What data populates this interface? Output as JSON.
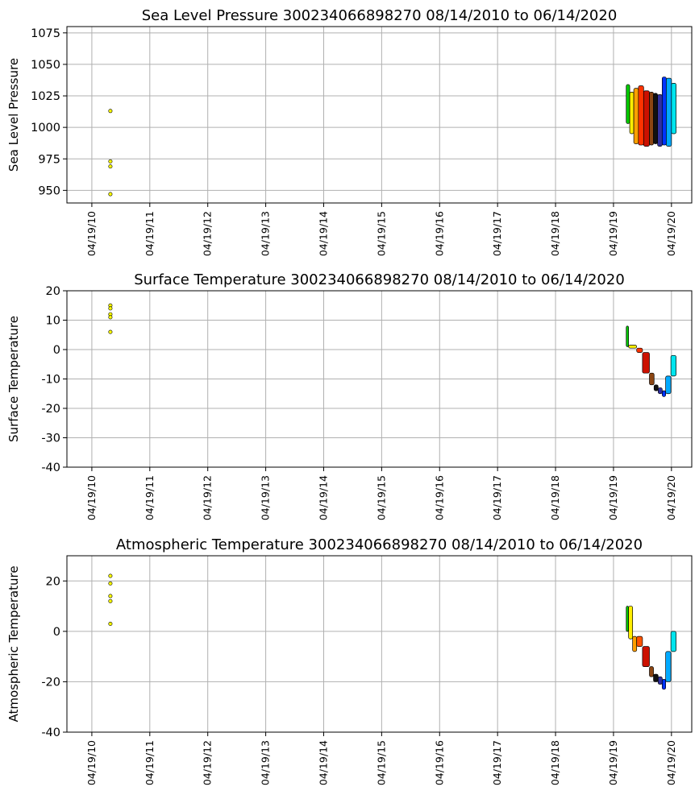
{
  "chart_data": [
    {
      "type": "scatter",
      "title": "Sea Level Pressure 300234066898270  08/14/2010 to 06/14/2020",
      "xlabel": "",
      "ylabel": "Sea Level Pressure",
      "ylim": [
        940,
        1080
      ],
      "yticks": [
        950,
        975,
        1000,
        1025,
        1050,
        1075
      ],
      "xlim": [
        2009.87,
        2020.65
      ],
      "xticks": [
        2010.3,
        2011.3,
        2012.3,
        2013.3,
        2014.3,
        2015.3,
        2016.3,
        2017.3,
        2018.3,
        2019.3,
        2020.3
      ],
      "xticklabels": [
        "04/19/10",
        "04/19/11",
        "04/19/12",
        "04/19/13",
        "04/19/14",
        "04/19/15",
        "04/19/16",
        "04/19/17",
        "04/19/18",
        "04/19/19",
        "04/19/20"
      ],
      "grid": true,
      "early_points": {
        "x": 2010.62,
        "color": "#ffff00",
        "values": [
          1013,
          973,
          969,
          947
        ]
      },
      "track_segments": [
        {
          "x0": 2019.52,
          "x1": 2019.58,
          "color": "#00cc00",
          "low": 1003,
          "high": 1034
        },
        {
          "x0": 2019.58,
          "x1": 2019.65,
          "color": "#ffee00",
          "low": 995,
          "high": 1028
        },
        {
          "x0": 2019.65,
          "x1": 2019.73,
          "color": "#ffa000",
          "low": 987,
          "high": 1031
        },
        {
          "x0": 2019.73,
          "x1": 2019.82,
          "color": "#ff3300",
          "low": 986,
          "high": 1033
        },
        {
          "x0": 2019.82,
          "x1": 2019.92,
          "color": "#cc1100",
          "low": 985,
          "high": 1029
        },
        {
          "x0": 2019.92,
          "x1": 2019.99,
          "color": "#8b4513",
          "low": 986,
          "high": 1028
        },
        {
          "x0": 2019.99,
          "x1": 2020.06,
          "color": "#111111",
          "low": 987,
          "high": 1027
        },
        {
          "x0": 2020.06,
          "x1": 2020.14,
          "color": "#3030a0",
          "low": 985,
          "high": 1026
        },
        {
          "x0": 2020.14,
          "x1": 2020.21,
          "color": "#0033ff",
          "low": 986,
          "high": 1040
        },
        {
          "x0": 2020.21,
          "x1": 2020.3,
          "color": "#00aaff",
          "low": 985,
          "high": 1039
        },
        {
          "x0": 2020.3,
          "x1": 2020.38,
          "color": "#00e5ee",
          "low": 995,
          "high": 1035
        }
      ]
    },
    {
      "type": "scatter",
      "title": "Surface Temperature 300234066898270  08/14/2010 to 06/14/2020",
      "xlabel": "",
      "ylabel": "Surface Temperature",
      "ylim": [
        -40,
        20
      ],
      "yticks": [
        -40,
        -30,
        -20,
        -10,
        0,
        10,
        20
      ],
      "xlim": [
        2009.87,
        2020.65
      ],
      "xticks": [
        2010.3,
        2011.3,
        2012.3,
        2013.3,
        2014.3,
        2015.3,
        2016.3,
        2017.3,
        2018.3,
        2019.3,
        2020.3
      ],
      "xticklabels": [
        "04/19/10",
        "04/19/11",
        "04/19/12",
        "04/19/13",
        "04/19/14",
        "04/19/15",
        "04/19/16",
        "04/19/17",
        "04/19/18",
        "04/19/19",
        "04/19/20"
      ],
      "grid": true,
      "early_points": {
        "x": 2010.62,
        "color": "#ffff00",
        "values": [
          15,
          14,
          12,
          11,
          6
        ]
      },
      "track_segments": [
        {
          "x0": 2019.52,
          "x1": 2019.56,
          "color": "#00cc00",
          "low": 1,
          "high": 8
        },
        {
          "x0": 2019.56,
          "x1": 2019.7,
          "color": "#ffee00",
          "low": 0.5,
          "high": 1.5
        },
        {
          "x0": 2019.7,
          "x1": 2019.8,
          "color": "#ff3300",
          "low": -1,
          "high": 0.5
        },
        {
          "x0": 2019.8,
          "x1": 2019.92,
          "color": "#cc1100",
          "low": -8,
          "high": -1
        },
        {
          "x0": 2019.92,
          "x1": 2020.0,
          "color": "#8b4513",
          "low": -12,
          "high": -8
        },
        {
          "x0": 2020.0,
          "x1": 2020.07,
          "color": "#111111",
          "low": -14,
          "high": -12
        },
        {
          "x0": 2020.07,
          "x1": 2020.14,
          "color": "#3030a0",
          "low": -15,
          "high": -13
        },
        {
          "x0": 2020.14,
          "x1": 2020.2,
          "color": "#0033ff",
          "low": -16,
          "high": -14
        },
        {
          "x0": 2020.2,
          "x1": 2020.29,
          "color": "#00aaff",
          "low": -15,
          "high": -9
        },
        {
          "x0": 2020.29,
          "x1": 2020.38,
          "color": "#00e5ee",
          "low": -9,
          "high": -2
        }
      ]
    },
    {
      "type": "scatter",
      "title": "Atmospheric Temperature 300234066898270  08/14/2010 to 06/14/2020",
      "xlabel": "",
      "ylabel": "Atmospheric Temperature",
      "ylim": [
        -40,
        30
      ],
      "yticks": [
        -40,
        -20,
        0,
        20
      ],
      "xlim": [
        2009.87,
        2020.65
      ],
      "xticks": [
        2010.3,
        2011.3,
        2012.3,
        2013.3,
        2014.3,
        2015.3,
        2016.3,
        2017.3,
        2018.3,
        2019.3,
        2020.3
      ],
      "xticklabels": [
        "04/19/10",
        "04/19/11",
        "04/19/12",
        "04/19/13",
        "04/19/14",
        "04/19/15",
        "04/19/16",
        "04/19/17",
        "04/19/18",
        "04/19/19",
        "04/19/20"
      ],
      "grid": true,
      "early_points": {
        "x": 2010.62,
        "color": "#ffff00",
        "values": [
          22,
          19,
          14,
          12,
          3
        ]
      },
      "track_segments": [
        {
          "x0": 2019.52,
          "x1": 2019.56,
          "color": "#00cc00",
          "low": 0,
          "high": 10
        },
        {
          "x0": 2019.56,
          "x1": 2019.63,
          "color": "#ffee00",
          "low": -3,
          "high": 10
        },
        {
          "x0": 2019.63,
          "x1": 2019.7,
          "color": "#ffa000",
          "low": -8,
          "high": -2
        },
        {
          "x0": 2019.7,
          "x1": 2019.8,
          "color": "#ff5500",
          "low": -6,
          "high": -2
        },
        {
          "x0": 2019.8,
          "x1": 2019.92,
          "color": "#cc1100",
          "low": -14,
          "high": -6
        },
        {
          "x0": 2019.92,
          "x1": 2019.99,
          "color": "#8b4513",
          "low": -18,
          "high": -14
        },
        {
          "x0": 2019.99,
          "x1": 2020.07,
          "color": "#111111",
          "low": -20,
          "high": -17
        },
        {
          "x0": 2020.07,
          "x1": 2020.14,
          "color": "#3030a0",
          "low": -21,
          "high": -18
        },
        {
          "x0": 2020.14,
          "x1": 2020.2,
          "color": "#0033ff",
          "low": -23,
          "high": -19
        },
        {
          "x0": 2020.2,
          "x1": 2020.29,
          "color": "#00aaff",
          "low": -20,
          "high": -8
        },
        {
          "x0": 2020.29,
          "x1": 2020.38,
          "color": "#00e5ee",
          "low": -8,
          "high": 0
        }
      ]
    }
  ]
}
